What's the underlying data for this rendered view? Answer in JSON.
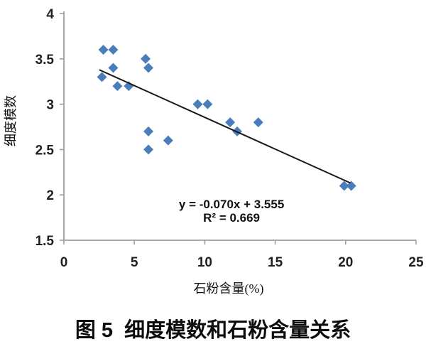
{
  "chart_data": {
    "type": "scatter",
    "xlabel": "石粉含量(%)",
    "ylabel": "细度模数",
    "xlim": [
      0,
      25
    ],
    "ylim": [
      1.5,
      4
    ],
    "xticks": [
      0,
      5,
      10,
      15,
      20,
      25
    ],
    "yticks": [
      4,
      3.5,
      3,
      2.5,
      2,
      1.5
    ],
    "grid": false,
    "legend": "none",
    "points": [
      [
        2.7,
        3.3
      ],
      [
        2.8,
        3.6
      ],
      [
        3.5,
        3.6
      ],
      [
        3.5,
        3.4
      ],
      [
        3.8,
        3.2
      ],
      [
        4.6,
        3.2
      ],
      [
        5.8,
        3.5
      ],
      [
        6.0,
        3.4
      ],
      [
        6.0,
        2.7
      ],
      [
        6.0,
        2.5
      ],
      [
        7.4,
        2.6
      ],
      [
        9.5,
        3.0
      ],
      [
        10.2,
        3.0
      ],
      [
        11.8,
        2.8
      ],
      [
        12.3,
        2.7
      ],
      [
        13.8,
        2.8
      ],
      [
        19.9,
        2.1
      ],
      [
        20.4,
        2.1
      ]
    ],
    "trendline": {
      "slope": -0.07,
      "intercept": 3.555,
      "x_start": 2.55,
      "x_end": 20.3,
      "equation_label": "y = -0.070x + 3.555",
      "r_squared_label": "R² = 0.669",
      "annotation_anchor": {
        "x": 11.9,
        "y": 1.9
      }
    },
    "marker": {
      "shape": "diamond",
      "color": "#4a7ebb",
      "size": 14
    },
    "colors": {
      "axis": "#9e9e9e",
      "text": "#1f1f1f",
      "trendline": "#1a1a1a",
      "marker": "#4a7ebb"
    }
  },
  "caption": "图 5  细度模数和石粉含量关系"
}
